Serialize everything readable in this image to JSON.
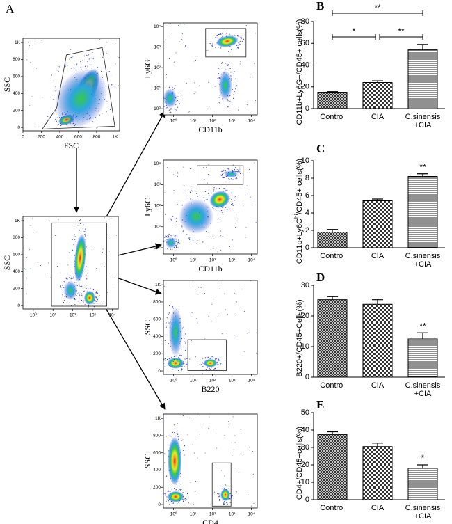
{
  "flow_panel": {
    "panel": "A",
    "plots": [
      {
        "xlabel": "FSC",
        "ylabel": "SSC",
        "xscale": "linear",
        "yscale": "linear",
        "xlim": [
          0,
          1050
        ],
        "ylim": [
          -40,
          1050
        ],
        "xticks": [
          0,
          200,
          400,
          600,
          800,
          {
            "value": 1000,
            "label": "1K"
          }
        ],
        "yticks": [
          0,
          200,
          400,
          600,
          800,
          {
            "value": 1000,
            "label": "1K"
          }
        ]
      },
      {
        "ylabel": "SSC",
        "xscale": "log",
        "yscale": "linear",
        "xlim": [
          0.3,
          20000
        ],
        "ylim": [
          -40,
          1050
        ],
        "xticks": [
          {
            "value": 1,
            "label": "10⁰"
          },
          {
            "value": 10,
            "label": "10¹"
          },
          {
            "value": 100,
            "label": "10²"
          },
          {
            "value": 1000,
            "label": "10³"
          },
          {
            "value": 10000,
            "label": "10⁴"
          }
        ],
        "yticks": [
          0,
          200,
          400,
          600,
          800,
          {
            "value": 1000,
            "label": "1K"
          }
        ]
      },
      {
        "xlabel": "CD11b",
        "ylabel": "Ly6G",
        "xscale": "log",
        "yscale": "log",
        "xlim": [
          0.3,
          20000
        ],
        "ylim": [
          0.5,
          15000
        ],
        "xticks": [
          {
            "value": 1,
            "label": "10⁰"
          },
          {
            "value": 10,
            "label": "10¹"
          },
          {
            "value": 100,
            "label": "10²"
          },
          {
            "value": 1000,
            "label": "10³"
          },
          {
            "value": 10000,
            "label": "10⁴"
          }
        ],
        "yticks": [
          {
            "value": 1,
            "label": "10⁰"
          },
          {
            "value": 10,
            "label": "10¹"
          },
          {
            "value": 100,
            "label": "10²"
          },
          {
            "value": 1000,
            "label": "10³"
          },
          {
            "value": 10000,
            "label": "10⁴"
          }
        ]
      },
      {
        "xlabel": "CD11b",
        "ylabel": "Ly6C",
        "xscale": "log",
        "yscale": "log",
        "xlim": [
          0.3,
          20000
        ],
        "ylim": [
          0.5,
          15000
        ],
        "xticks": [
          {
            "value": 1,
            "label": "10⁰"
          },
          {
            "value": 10,
            "label": "10¹"
          },
          {
            "value": 100,
            "label": "10²"
          },
          {
            "value": 1000,
            "label": "10³"
          },
          {
            "value": 10000,
            "label": "10⁴"
          }
        ],
        "yticks": [
          {
            "value": 1,
            "label": "10⁰"
          },
          {
            "value": 10,
            "label": "10¹"
          },
          {
            "value": 100,
            "label": "10²"
          },
          {
            "value": 1000,
            "label": "10³"
          },
          {
            "value": 10000,
            "label": "10⁴"
          }
        ]
      },
      {
        "xlabel": "B220",
        "ylabel": "SSC",
        "xscale": "log",
        "yscale": "linear",
        "xlim": [
          0.3,
          20000
        ],
        "ylim": [
          -40,
          1050
        ],
        "xticks": [
          {
            "value": 1,
            "label": "10⁰"
          },
          {
            "value": 10,
            "label": "10¹"
          },
          {
            "value": 100,
            "label": "10²"
          },
          {
            "value": 1000,
            "label": "10³"
          },
          {
            "value": 10000,
            "label": "10⁴"
          }
        ],
        "yticks": [
          0,
          200,
          400,
          600,
          800,
          {
            "value": 1000,
            "label": "1K"
          }
        ]
      },
      {
        "xlabel": "CD4",
        "ylabel": "SSC",
        "xscale": "log",
        "yscale": "linear",
        "xlim": [
          0.3,
          20000
        ],
        "ylim": [
          -40,
          1050
        ],
        "xticks": [
          {
            "value": 1,
            "label": "10⁰"
          },
          {
            "value": 10,
            "label": "10¹"
          },
          {
            "value": 100,
            "label": "10²"
          },
          {
            "value": 1000,
            "label": "10³"
          },
          {
            "value": 10000,
            "label": "10⁴"
          }
        ],
        "yticks": [
          0,
          200,
          400,
          600,
          800,
          {
            "value": 1000,
            "label": "1K"
          }
        ]
      }
    ]
  },
  "chart_data": [
    {
      "type": "bar",
      "panel": "B",
      "ylabel": "CD11b+Ly6G+/CD45+ cells(%)",
      "categories": [
        "Control",
        "CIA",
        [
          "C.sinensis",
          "+CIA"
        ]
      ],
      "values": [
        15,
        24,
        54
      ],
      "errors": [
        0.5,
        1.5,
        5
      ],
      "patterns": [
        "crosshatch",
        "checker",
        "hlines"
      ],
      "ylim": [
        0,
        80
      ],
      "yticks": [
        0,
        20,
        40,
        60,
        80
      ],
      "significance": [
        {
          "text": "**",
          "between": [
            0,
            2
          ]
        },
        {
          "text": "*",
          "between": [
            0,
            1
          ]
        },
        {
          "text": "**",
          "between": [
            1,
            2
          ]
        }
      ]
    },
    {
      "type": "bar",
      "panel": "C",
      "ylabel": {
        "text": "CD11b+Ly6C",
        "sup": "hi",
        "after": "/CD45+ cells(%)"
      },
      "categories": [
        "Control",
        "CIA",
        [
          "C.sinensis",
          "+CIA"
        ]
      ],
      "values": [
        1.8,
        5.4,
        8.2
      ],
      "errors": [
        0.3,
        0.2,
        0.3
      ],
      "patterns": [
        "crosshatch",
        "checker",
        "hlines"
      ],
      "ylim": [
        0,
        10
      ],
      "yticks": [
        0,
        2,
        4,
        6,
        8,
        10
      ],
      "significance": [
        {
          "text": "**",
          "between": [
            2
          ]
        }
      ]
    },
    {
      "type": "bar",
      "panel": "D",
      "ylabel": "B220+/CD45+Cells(%)",
      "categories": [
        "Control",
        "CIA",
        [
          "C.sinensis",
          "+CIA"
        ]
      ],
      "values": [
        25.3,
        23.8,
        12.5
      ],
      "errors": [
        1,
        1.5,
        2
      ],
      "patterns": [
        "crosshatch",
        "checker",
        "hlines"
      ],
      "ylim": [
        0,
        30
      ],
      "yticks": [
        0,
        10,
        20,
        30
      ],
      "significance": [
        {
          "text": "**",
          "between": [
            2
          ]
        }
      ]
    },
    {
      "type": "bar",
      "panel": "E",
      "ylabel": "CD4+/CD45+cells(%)",
      "categories": [
        "Control",
        "CIA",
        [
          "C.sinensis",
          "+CIA"
        ]
      ],
      "values": [
        37.5,
        30.5,
        18
      ],
      "errors": [
        1.5,
        2,
        2
      ],
      "patterns": [
        "crosshatch",
        "checker",
        "hlines"
      ],
      "ylim": [
        0,
        50
      ],
      "yticks": [
        0,
        10,
        20,
        30,
        40,
        50
      ],
      "significance": [
        {
          "text": "*",
          "between": [
            2
          ]
        }
      ]
    }
  ]
}
